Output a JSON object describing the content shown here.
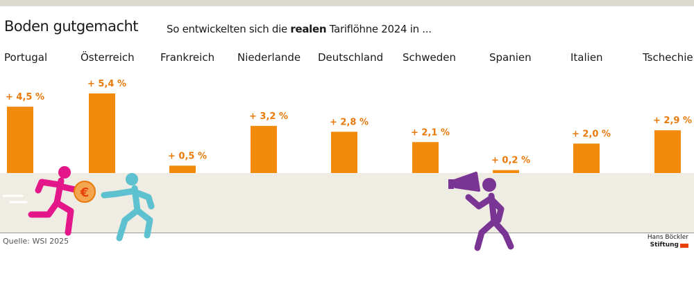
{
  "header": {
    "title": "Boden gutgemacht",
    "subtitle_before": "So entwickelten sich die ",
    "subtitle_bold": "realen",
    "subtitle_after": " Tariflöhne 2024 in ..."
  },
  "chart_data": {
    "type": "bar",
    "title": "Boden gutgemacht",
    "subtitle": "So entwickelten sich die realen Tariflöhne 2024 in ...",
    "categories": [
      "Portugal",
      "Österreich",
      "Frankreich",
      "Niederlande",
      "Deutschland",
      "Schweden",
      "Spanien",
      "Italien",
      "Tschechien"
    ],
    "values": [
      4.5,
      5.4,
      0.5,
      3.2,
      2.8,
      2.1,
      0.2,
      2.0,
      2.9
    ],
    "value_labels": [
      "+ 4,5 %",
      "+ 5,4 %",
      "+ 0,5 %",
      "+ 3,2 %",
      "+ 2,8 %",
      "+ 2,1 %",
      "+ 0,2 %",
      "+ 2,0 %",
      "+ 2,9 %"
    ],
    "xlabel": "",
    "ylabel": "",
    "ylim": [
      0,
      5.4
    ],
    "grid": false,
    "bar_color": "#f28a0c",
    "label_color": "#e8790a"
  },
  "footer": {
    "source": "Quelle: WSI 2025",
    "logo_line1": "Hans Böckler",
    "logo_line2": "Stiftung"
  },
  "illustration": {
    "figures": [
      "runner-with-euro-coin",
      "chasing-figure",
      "figure-with-megaphone"
    ],
    "coin_symbol": "€",
    "colors": {
      "runner": "#e3178a",
      "chaser": "#5ec1cf",
      "speaker": "#7a3594",
      "coin": "#f4a54f"
    }
  }
}
